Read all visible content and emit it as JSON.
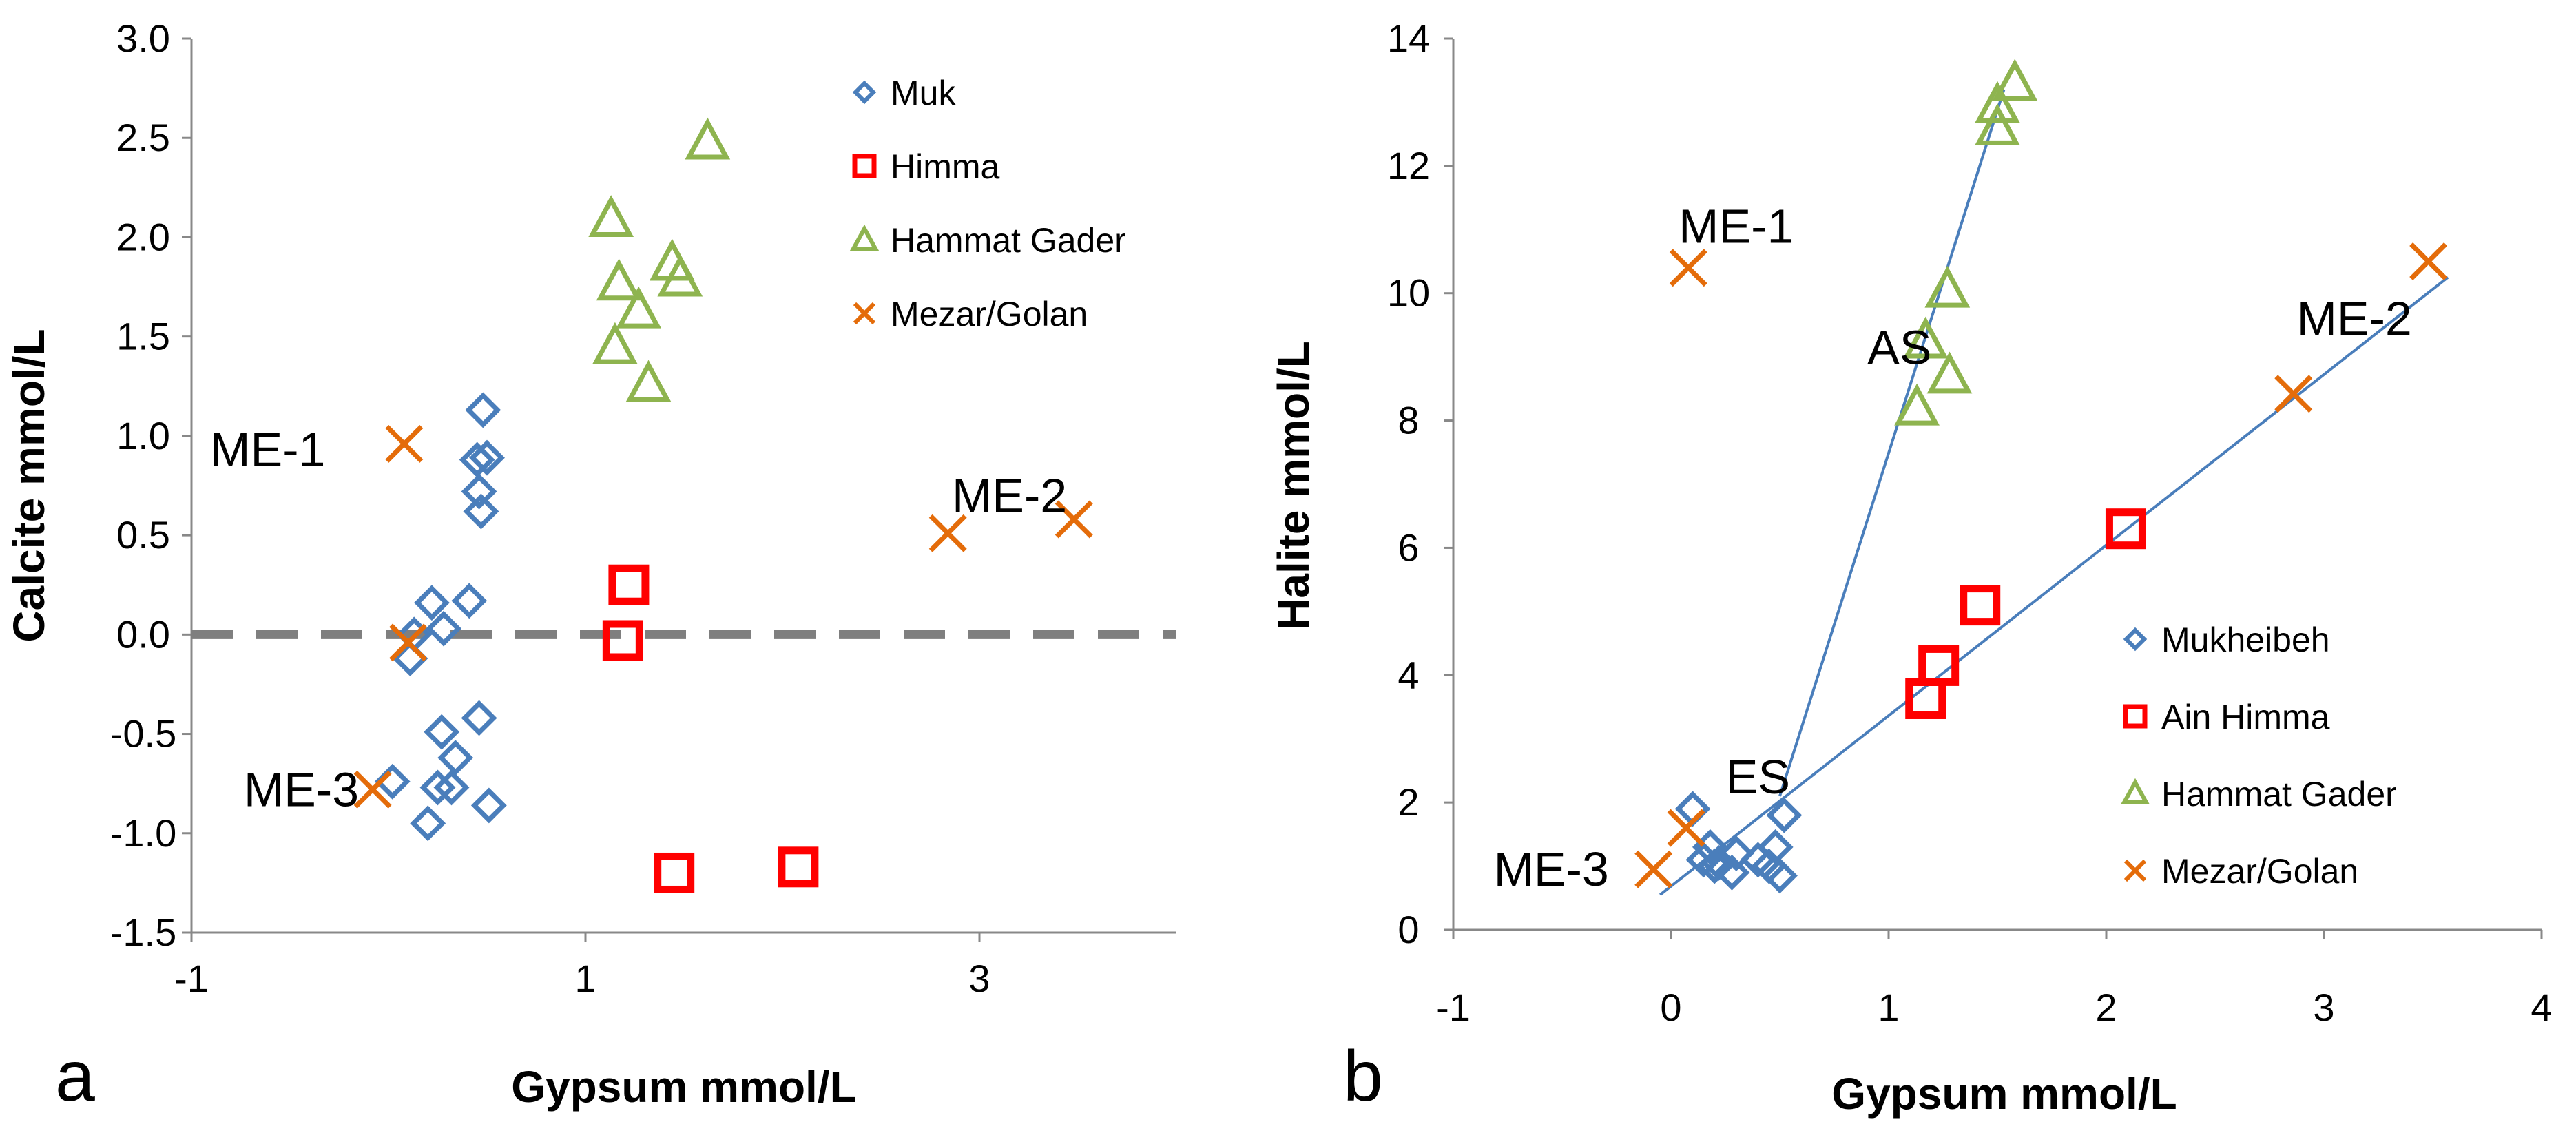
{
  "colors": {
    "muk": "#4a7ebb",
    "himma": "#ff0000",
    "hammat": "#8eb44f",
    "mezar": "#e46c0a",
    "axis": "#888888",
    "zero_line": "#7f7f7f",
    "trend": "#4a7ebb"
  },
  "chart_data": [
    {
      "id": "a",
      "type": "scatter",
      "panel_label": "a",
      "title": "",
      "xlabel": "Gypsum mmol/L",
      "ylabel": "Calcite mmol/L",
      "xlim": [
        -1,
        4
      ],
      "ylim": [
        -1.5,
        3.0
      ],
      "xticks": [
        -1,
        1,
        3
      ],
      "xtick_labels": [
        "-1",
        "1",
        "3"
      ],
      "yticks": [
        -1.5,
        -1.0,
        -0.5,
        0.0,
        0.5,
        1.0,
        1.5,
        2.0,
        2.5,
        3.0
      ],
      "ytick_labels": [
        "-1.5",
        "-1.0",
        "-0.5",
        "0.0",
        "0.5",
        "1.0",
        "1.5",
        "2.0",
        "2.5",
        "3.0"
      ],
      "reference_line": {
        "y": 0.0,
        "style": "dashed"
      },
      "legend": [
        "Muk",
        "Himma",
        "Hammat Gader",
        "Mezar/Golan"
      ],
      "legend_position": "top-right",
      "series": [
        {
          "name": "Muk",
          "marker": "diamond",
          "color_key": "muk",
          "x": [
            0.48,
            0.5,
            0.45,
            0.46,
            0.47,
            0.41,
            0.22,
            0.28,
            0.13,
            0.11,
            0.27,
            0.34,
            0.46,
            0.25,
            0.32,
            0.51,
            0.2,
            0.02
          ],
          "y": [
            1.13,
            0.89,
            0.88,
            0.72,
            0.62,
            0.17,
            0.16,
            0.03,
            0.0,
            -0.12,
            -0.49,
            -0.62,
            -0.42,
            -0.77,
            -0.77,
            -0.86,
            -0.95,
            -0.74
          ]
        },
        {
          "name": "Himma",
          "marker": "square",
          "color_key": "himma",
          "x": [
            1.22,
            1.19,
            1.45,
            2.08
          ],
          "y": [
            0.25,
            -0.03,
            -1.2,
            -1.17
          ]
        },
        {
          "name": "Hammat Gader",
          "marker": "triangle",
          "color_key": "hammat",
          "x": [
            1.62,
            1.13,
            1.17,
            1.44,
            1.48,
            1.27,
            1.15,
            1.32
          ],
          "y": [
            2.48,
            2.09,
            1.77,
            1.87,
            1.79,
            1.63,
            1.45,
            1.26
          ]
        },
        {
          "name": "Mezar/Golan",
          "marker": "x",
          "color_key": "mezar",
          "x": [
            0.08,
            0.1,
            -0.08,
            2.84,
            3.48
          ],
          "y": [
            0.96,
            -0.04,
            -0.78,
            0.51,
            0.58
          ]
        }
      ],
      "annotations": [
        {
          "text": "ME-1",
          "x": -0.32,
          "y": 0.93,
          "anchor": "end"
        },
        {
          "text": "ME-3",
          "x": -0.15,
          "y": -0.78,
          "anchor": "end"
        },
        {
          "text": "ME-2",
          "x": 2.86,
          "y": 0.7,
          "anchor": "start"
        }
      ]
    },
    {
      "id": "b",
      "type": "scatter",
      "panel_label": "b",
      "title": "",
      "xlabel": "Gypsum  mmol/L",
      "ylabel": "Halite  mmol/L",
      "xlim": [
        -1,
        4
      ],
      "ylim": [
        0,
        14
      ],
      "xticks": [
        -1,
        0,
        1,
        2,
        3,
        4
      ],
      "xtick_labels": [
        "-1",
        "0",
        "1",
        "2",
        "3",
        "4"
      ],
      "yticks": [
        0,
        2,
        4,
        6,
        8,
        10,
        12,
        14
      ],
      "ytick_labels": [
        "0",
        "2",
        "4",
        "6",
        "8",
        "10",
        "12",
        "14"
      ],
      "legend": [
        "Mukheibeh",
        "Ain Himma",
        "Hammat Gader",
        "Mezar/Golan"
      ],
      "legend_position": "bottom-right",
      "series": [
        {
          "name": "Mukheibeh",
          "marker": "diamond",
          "color_key": "muk",
          "x": [
            0.1,
            0.15,
            0.18,
            0.2,
            0.22,
            0.28,
            0.3,
            0.4,
            0.45,
            0.48,
            0.5,
            0.52
          ],
          "y": [
            1.9,
            1.1,
            1.3,
            1.0,
            1.05,
            0.9,
            1.2,
            1.1,
            1.0,
            1.3,
            0.85,
            1.8
          ]
        },
        {
          "name": "Ain Himma",
          "marker": "square",
          "color_key": "himma",
          "x": [
            1.17,
            1.23,
            1.42,
            2.09
          ],
          "y": [
            3.63,
            4.15,
            5.1,
            6.3
          ]
        },
        {
          "name": "Hammat Gader",
          "marker": "triangle",
          "color_key": "hammat",
          "x": [
            1.58,
            1.5,
            1.5,
            1.27,
            1.17,
            1.28,
            1.13
          ],
          "y": [
            13.3,
            12.95,
            12.6,
            10.05,
            9.25,
            8.7,
            8.2
          ]
        },
        {
          "name": "Mezar/Golan",
          "marker": "x",
          "color_key": "mezar",
          "x": [
            0.08,
            -0.08,
            0.07,
            2.86,
            3.48
          ],
          "y": [
            10.4,
            0.95,
            1.6,
            8.42,
            10.5
          ]
        }
      ],
      "trendlines": [
        {
          "x": [
            -0.05,
            3.57
          ],
          "y": [
            0.55,
            10.25
          ]
        },
        {
          "x": [
            0.5,
            1.53
          ],
          "y": [
            2.1,
            13.2
          ]
        }
      ],
      "annotations": [
        {
          "text": "ME-1",
          "x": 0.3,
          "y": 11.05,
          "anchor": "middle"
        },
        {
          "text": "AS",
          "x": 1.05,
          "y": 9.15,
          "anchor": "middle"
        },
        {
          "text": "ME-2",
          "x": 3.14,
          "y": 9.6,
          "anchor": "middle"
        },
        {
          "text": "ES",
          "x": 0.4,
          "y": 2.4,
          "anchor": "middle"
        },
        {
          "text": "ME-3",
          "x": -0.55,
          "y": 0.95,
          "anchor": "middle"
        }
      ]
    }
  ]
}
